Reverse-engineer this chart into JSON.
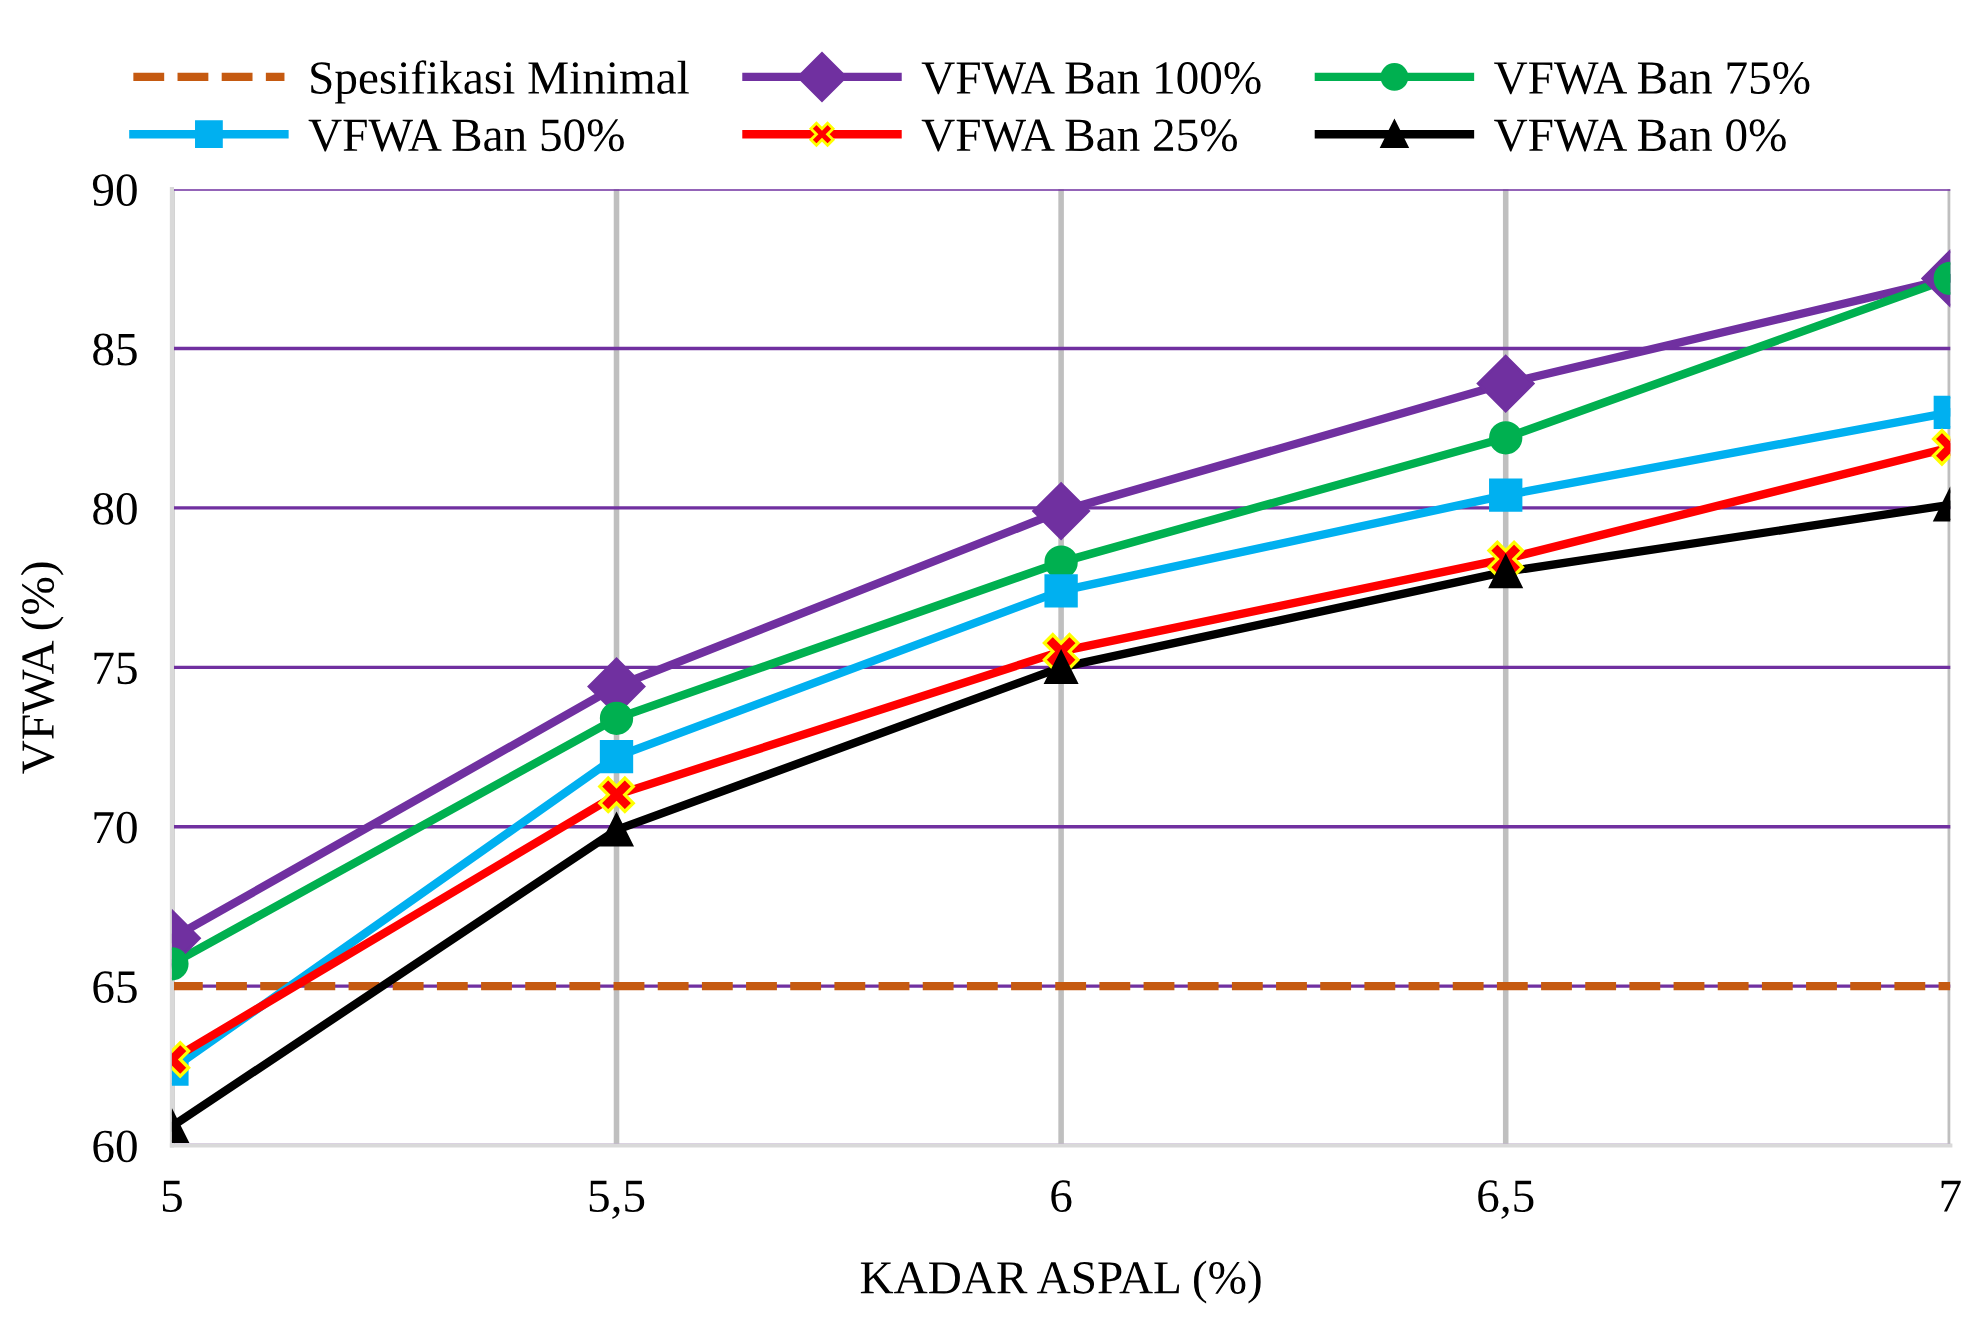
{
  "chart_data": {
    "type": "line",
    "xlabel": "KADAR ASPAL (%)",
    "ylabel": "VFWA (%)",
    "x": [
      5,
      5.5,
      6,
      6.5,
      7
    ],
    "series": [
      {
        "name": "VFWA Ban 100%",
        "color": "#7030a0",
        "marker": "diamond",
        "values": [
          66.5,
          74.4,
          79.9,
          83.9,
          87.2
        ]
      },
      {
        "name": "VFWA Ban 75%",
        "color": "#00b050",
        "marker": "circle",
        "values": [
          65.7,
          73.4,
          78.3,
          82.2,
          87.2
        ]
      },
      {
        "name": "VFWA Ban 50%",
        "color": "#00b0f0",
        "marker": "square",
        "values": [
          62.4,
          72.2,
          77.4,
          80.4,
          83.0
        ]
      },
      {
        "name": "VFWA Ban 25%",
        "color": "#ff0000",
        "marker": "cross",
        "values": [
          62.7,
          71.0,
          75.5,
          78.4,
          81.9
        ]
      },
      {
        "name": "VFWA Ban 0%",
        "color": "#000000",
        "marker": "triangle",
        "values": [
          60.6,
          69.9,
          75.0,
          78.0,
          80.1
        ]
      }
    ],
    "ref_lines": [
      {
        "axis": "y",
        "value": 65,
        "label": "Spesifikasi Minimal",
        "color": "#c55a11",
        "line_style": "dashed"
      }
    ],
    "xlim": [
      5,
      7
    ],
    "ylim": [
      60,
      90
    ],
    "xticks": [
      5,
      {
        "value": 5.5,
        "label": "5,5"
      },
      6,
      {
        "value": 6.5,
        "label": "6,5"
      },
      7
    ],
    "yticks": [
      60,
      65,
      70,
      75,
      80,
      85,
      90
    ],
    "grid": true,
    "legend": "top",
    "line_style": "solid"
  }
}
